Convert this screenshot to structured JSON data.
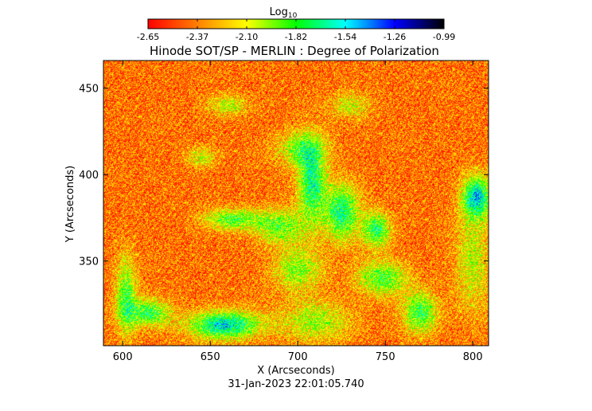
{
  "chart_data": {
    "type": "heatmap",
    "title": "Hinode SOT/SP - MERLIN : Degree of Polarization",
    "xlabel": "X (Arcseconds)",
    "ylabel": "Y (Arcseconds)",
    "timestamp": "31-Jan-2023 22:01:05.740",
    "xlim": [
      589,
      809
    ],
    "ylim": [
      301,
      466
    ],
    "xticks": [
      600,
      650,
      700,
      750,
      800
    ],
    "yticks": [
      350,
      400,
      450
    ],
    "colorbar": {
      "label": "Log",
      "label_sub": "10",
      "range": [
        -2.65,
        -0.99
      ],
      "ticks": [
        "-2.65",
        "-2.37",
        "-2.10",
        "-1.82",
        "-1.54",
        "-1.26",
        "-0.99"
      ],
      "colormap": [
        "#ff0000",
        "#ff8000",
        "#ffff00",
        "#00ff00",
        "#00ffff",
        "#0000ff",
        "#000000"
      ]
    },
    "background_level": -2.4,
    "features": [
      {
        "x": 663,
        "y": 374,
        "sx": 16,
        "sy": 6,
        "level": -1.85
      },
      {
        "x": 690,
        "y": 370,
        "sx": 14,
        "sy": 10,
        "level": -1.9
      },
      {
        "x": 708,
        "y": 395,
        "sx": 8,
        "sy": 22,
        "level": -1.7
      },
      {
        "x": 725,
        "y": 378,
        "sx": 10,
        "sy": 16,
        "level": -1.7
      },
      {
        "x": 745,
        "y": 368,
        "sx": 8,
        "sy": 10,
        "level": -1.75
      },
      {
        "x": 748,
        "y": 340,
        "sx": 14,
        "sy": 10,
        "level": -1.85
      },
      {
        "x": 770,
        "y": 320,
        "sx": 10,
        "sy": 12,
        "level": -1.8
      },
      {
        "x": 602,
        "y": 330,
        "sx": 6,
        "sy": 22,
        "level": -1.85
      },
      {
        "x": 615,
        "y": 320,
        "sx": 12,
        "sy": 8,
        "level": -1.8
      },
      {
        "x": 658,
        "y": 313,
        "sx": 20,
        "sy": 8,
        "level": -1.55
      },
      {
        "x": 710,
        "y": 315,
        "sx": 20,
        "sy": 12,
        "level": -2.0
      },
      {
        "x": 700,
        "y": 345,
        "sx": 14,
        "sy": 12,
        "level": -1.95
      },
      {
        "x": 660,
        "y": 440,
        "sx": 12,
        "sy": 6,
        "level": -2.05
      },
      {
        "x": 645,
        "y": 410,
        "sx": 8,
        "sy": 6,
        "level": -2.05
      },
      {
        "x": 702,
        "y": 415,
        "sx": 14,
        "sy": 10,
        "level": -1.95
      },
      {
        "x": 802,
        "y": 387,
        "sx": 8,
        "sy": 12,
        "level": -1.55
      },
      {
        "x": 800,
        "y": 350,
        "sx": 10,
        "sy": 30,
        "level": -2.05
      },
      {
        "x": 730,
        "y": 440,
        "sx": 12,
        "sy": 8,
        "level": -2.1
      }
    ]
  }
}
